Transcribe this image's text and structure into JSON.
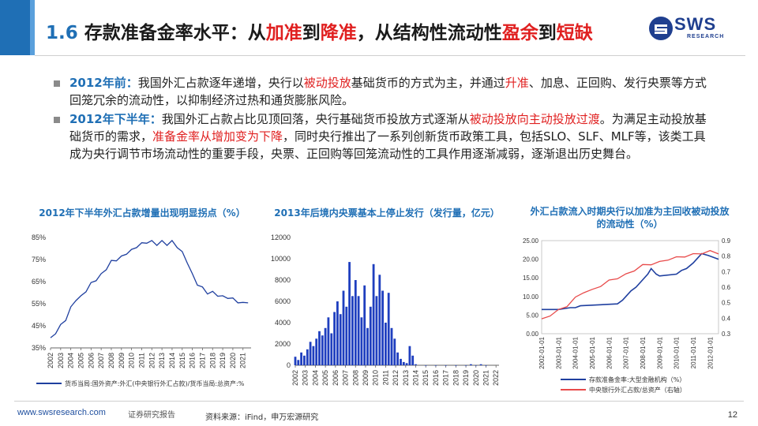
{
  "slide": {
    "title_number": "1.6",
    "title_segments": [
      {
        "text": " 存款准备金率水平：从",
        "style": "normal"
      },
      {
        "text": "加准",
        "style": "red"
      },
      {
        "text": "到",
        "style": "normal"
      },
      {
        "text": "降准",
        "style": "red"
      },
      {
        "text": "，从结构性流动性",
        "style": "normal"
      },
      {
        "text": "盈余",
        "style": "red"
      },
      {
        "text": "到",
        "style": "normal"
      },
      {
        "text": "短缺",
        "style": "red"
      }
    ]
  },
  "logo": {
    "name": "SWS",
    "sub": "RESEARCH"
  },
  "bullets": [
    {
      "segments": [
        {
          "text": "2012年前：",
          "style": "lead"
        },
        {
          "text": "我国外汇占款逐年递增，央行以",
          "style": "normal"
        },
        {
          "text": "被动投放",
          "style": "hl"
        },
        {
          "text": "基础货币的方式为主，并通过",
          "style": "normal"
        },
        {
          "text": "升准",
          "style": "hl"
        },
        {
          "text": "、加息、正回购、发行央票等方式回笼冗余的流动性，以抑制经济过热和通货膨胀风险。",
          "style": "normal"
        }
      ]
    },
    {
      "segments": [
        {
          "text": "2012年下半年：",
          "style": "lead"
        },
        {
          "text": "我国外汇占款占比见顶回落，央行基础货币投放方式逐渐从",
          "style": "normal"
        },
        {
          "text": "被动投放向主动投放过渡",
          "style": "hl"
        },
        {
          "text": "。为满足主动投放基础货币的需求，",
          "style": "normal"
        },
        {
          "text": "准备金率从增加变为下降",
          "style": "hl"
        },
        {
          "text": "，同时央行推出了一系列创新货币政策工具，包括SLO、SLF、MLF等，该类工具成为央行调节市场流动性的重要手段，央票、正回购等回笼流动性的工具作用逐渐减弱，逐渐退出历史舞台。",
          "style": "normal"
        }
      ]
    }
  ],
  "chart_data": [
    {
      "type": "line",
      "title": "2012年下半年外汇占款增量出现明显拐点（%）",
      "x_ticks": [
        "2002",
        "2003",
        "2004",
        "2005",
        "2006",
        "2007",
        "2008",
        "2009",
        "2010",
        "2011",
        "2012",
        "2013",
        "2014",
        "2015",
        "2016",
        "2017",
        "2018",
        "2019",
        "2020",
        "2021"
      ],
      "ylim": [
        35,
        85
      ],
      "y_ticks": [
        "85%",
        "75%",
        "65%",
        "55%",
        "45%",
        "35%"
      ],
      "y_tick_values": [
        85,
        75,
        65,
        55,
        45,
        35
      ],
      "series": [
        {
          "name": "货币当局:国外资产:外汇(中央银行外汇占款)/货币当局:总资产:%",
          "color": "#1f3f9f",
          "x": [
            2002.0,
            2002.5,
            2003.0,
            2003.5,
            2004.0,
            2004.5,
            2005.0,
            2005.5,
            2006.0,
            2006.5,
            2007.0,
            2007.5,
            2008.0,
            2008.5,
            2009.0,
            2009.5,
            2010.0,
            2010.5,
            2011.0,
            2011.5,
            2012.0,
            2012.5,
            2013.0,
            2013.5,
            2014.0,
            2014.5,
            2015.0,
            2015.5,
            2016.0,
            2016.5,
            2017.0,
            2017.5,
            2018.0,
            2018.5,
            2019.0,
            2019.5,
            2020.0,
            2020.5,
            2021.0,
            2021.5
          ],
          "values": [
            39,
            42,
            45,
            48,
            53,
            57,
            58,
            61,
            64,
            66,
            68,
            71,
            74,
            75,
            76,
            78,
            79,
            81,
            82,
            83,
            83,
            82,
            83,
            82,
            83,
            81,
            78,
            74,
            68,
            64,
            62,
            60,
            60,
            59,
            58,
            58,
            57,
            56,
            55,
            56
          ]
        }
      ]
    },
    {
      "type": "bar",
      "title": "2013年后境内央票基本上停止发行（发行量，亿元）",
      "x_ticks": [
        "2002",
        "2003",
        "2004",
        "2005",
        "2006",
        "2007",
        "2008",
        "2009",
        "2010",
        "2011",
        "2012",
        "2013",
        "2014",
        "2015",
        "2016",
        "2017",
        "2018",
        "2019",
        "2020",
        "2021",
        "2022"
      ],
      "ylim": [
        0,
        12000
      ],
      "y_ticks": [
        "12000",
        "10000",
        "8000",
        "6000",
        "4000",
        "2000",
        "0"
      ],
      "y_tick_values": [
        12000,
        10000,
        8000,
        6000,
        4000,
        2000,
        0
      ],
      "series": [
        {
          "name": "央票发行量",
          "color": "#1f3fbf",
          "x": [
            2002.0,
            2002.3,
            2002.6,
            2002.9,
            2003.2,
            2003.5,
            2003.8,
            2004.1,
            2004.4,
            2004.7,
            2005.0,
            2005.3,
            2005.6,
            2005.9,
            2006.2,
            2006.5,
            2006.8,
            2007.1,
            2007.4,
            2007.7,
            2008.0,
            2008.3,
            2008.6,
            2008.9,
            2009.2,
            2009.5,
            2009.8,
            2010.1,
            2010.4,
            2010.7,
            2011.0,
            2011.3,
            2011.6,
            2011.9,
            2012.2,
            2012.5,
            2012.8,
            2013.1,
            2013.4,
            2013.7,
            2014.0,
            2015.0,
            2016.0,
            2017.0,
            2018.0,
            2019.0,
            2019.5,
            2020.0,
            2020.5,
            2021.0
          ],
          "values": [
            800,
            500,
            1200,
            900,
            1500,
            2200,
            1800,
            2500,
            3200,
            2800,
            3500,
            4500,
            3000,
            5000,
            6000,
            4800,
            7000,
            5500,
            9700,
            6500,
            8000,
            6500,
            4500,
            7500,
            3500,
            5500,
            9500,
            6500,
            8500,
            7000,
            4000,
            6800,
            3500,
            2500,
            1200,
            600,
            300,
            200,
            1800,
            900,
            100,
            0,
            0,
            0,
            0,
            0,
            100,
            0,
            100,
            0
          ]
        }
      ]
    },
    {
      "type": "line",
      "title": "外汇占款流入时期央行以加准为主回收被动投放的流动性（%）",
      "x_ticks": [
        "2002-01-01",
        "2003-01-01",
        "2004-01-01",
        "2005-01-01",
        "2006-01-01",
        "2007-01-01",
        "2008-01-01",
        "2009-01-01",
        "2010-01-01",
        "2011-01-01",
        "2012-01-01"
      ],
      "ylim": [
        0,
        25
      ],
      "y_ticks": [
        "25.00",
        "20.00",
        "15.00",
        "10.00",
        "5.00",
        "0.00"
      ],
      "y_tick_values": [
        25,
        20,
        15,
        10,
        5,
        0
      ],
      "y2lim": [
        0.3,
        0.9
      ],
      "y2_ticks": [
        "0.9",
        "0.8",
        "0.7",
        "0.6",
        "0.5",
        "0.4",
        "0.3"
      ],
      "y2_tick_values": [
        0.9,
        0.8,
        0.7,
        0.6,
        0.5,
        0.4,
        0.3
      ],
      "series": [
        {
          "name": "存款准备金率:大型金融机构（%）",
          "color": "#1f3f9f",
          "axis": "left",
          "x": [
            2002.0,
            2003.0,
            2003.7,
            2004.0,
            2004.3,
            2006.5,
            2006.8,
            2007.0,
            2007.3,
            2007.6,
            2008.0,
            2008.3,
            2008.5,
            2008.8,
            2009.0,
            2010.0,
            2010.3,
            2010.6,
            2011.0,
            2011.3,
            2011.5,
            2011.9,
            2012.2,
            2012.5
          ],
          "values": [
            6.5,
            6.5,
            7.0,
            7.0,
            7.5,
            8.0,
            9.0,
            10.0,
            11.5,
            12.5,
            14.5,
            16.0,
            17.5,
            16.0,
            15.5,
            16.0,
            17.0,
            17.5,
            19.0,
            20.5,
            21.5,
            21.0,
            20.5,
            20.0
          ]
        },
        {
          "name": "中央银行外汇占款/总资产（右轴）",
          "color": "#e84a4a",
          "axis": "right",
          "x": [
            2002.0,
            2002.5,
            2003.0,
            2003.5,
            2004.0,
            2004.5,
            2005.0,
            2005.5,
            2006.0,
            2006.5,
            2007.0,
            2007.5,
            2008.0,
            2008.5,
            2009.0,
            2009.5,
            2010.0,
            2010.5,
            2011.0,
            2011.5,
            2012.0,
            2012.5
          ],
          "values": [
            0.39,
            0.42,
            0.45,
            0.48,
            0.53,
            0.57,
            0.58,
            0.61,
            0.64,
            0.66,
            0.68,
            0.71,
            0.74,
            0.75,
            0.76,
            0.78,
            0.79,
            0.8,
            0.81,
            0.82,
            0.83,
            0.82
          ]
        }
      ]
    }
  ],
  "footer": {
    "url": "www.swsresearch.com",
    "cert": "证券研究报告",
    "source": "资料来源：iFind，申万宏源研究",
    "page": "12"
  },
  "colors": {
    "accent": "#1f6fb5",
    "highlight": "#e02020"
  }
}
